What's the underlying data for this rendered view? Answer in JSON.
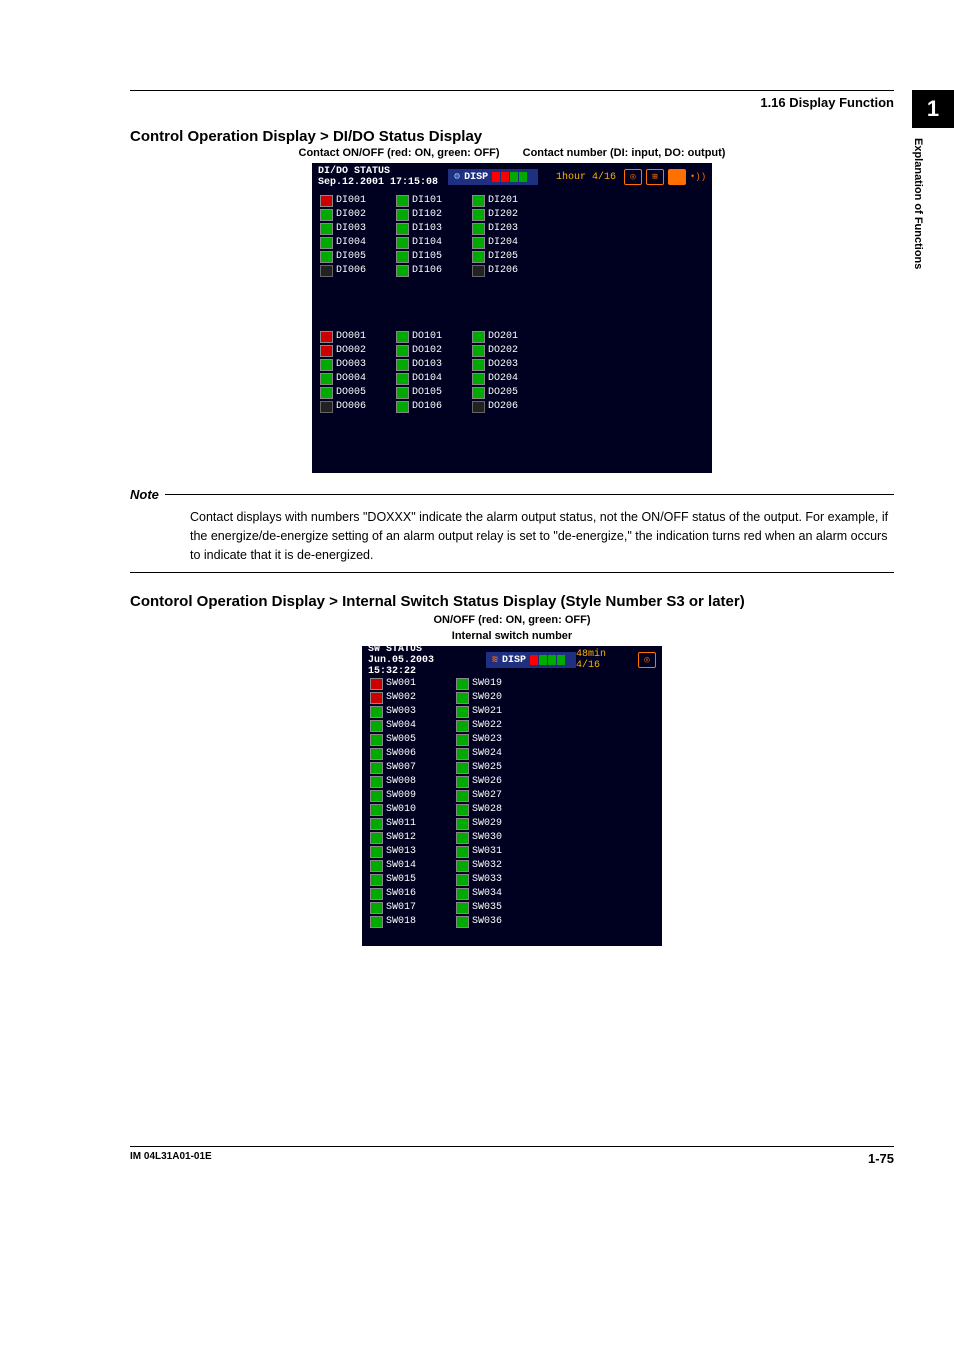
{
  "header": {
    "breadcrumb": "1.16  Display Function"
  },
  "sidetab": {
    "number": "1",
    "text": "Explanation of Functions"
  },
  "section1": {
    "title": "Control Operation Display > DI/DO Status Display",
    "anno_left": "Contact ON/OFF (red: ON, green: OFF)",
    "anno_right": "Contact number (DI: input, DO: output)",
    "screen": {
      "title_line1": "DI/DO STATUS",
      "title_line2": "Sep.12.2001 17:15:08",
      "disp_label": "DISP",
      "time_label": "1hour 4/16",
      "bar_colors": [
        "#ff0000",
        "#ff0000",
        "#00aa00",
        "#00aa00"
      ],
      "di": {
        "col1": [
          "DI001",
          "DI002",
          "DI003",
          "DI004",
          "DI005",
          "DI006"
        ],
        "col2": [
          "DI101",
          "DI102",
          "DI103",
          "DI104",
          "DI105",
          "DI106"
        ],
        "col3": [
          "DI201",
          "DI202",
          "DI203",
          "DI204",
          "DI205",
          "DI206"
        ],
        "red_indices_col1": [
          0
        ],
        "red_indices_col2": [],
        "red_indices_col3": [],
        "gray_indices_col1": [
          5
        ],
        "gray_indices_col3": [
          5
        ]
      },
      "do_": {
        "col1": [
          "DO001",
          "DO002",
          "DO003",
          "DO004",
          "DO005",
          "DO006"
        ],
        "col2": [
          "DO101",
          "DO102",
          "DO103",
          "DO104",
          "DO105",
          "DO106"
        ],
        "col3": [
          "DO201",
          "DO202",
          "DO203",
          "DO204",
          "DO205",
          "DO206"
        ],
        "red_indices_col1": [
          0,
          1
        ],
        "gray_indices_col1": [
          5
        ],
        "gray_indices_col3": [
          5
        ]
      }
    }
  },
  "note": {
    "heading": "Note",
    "body": "Contact displays with numbers \"DOXXX\" indicate the alarm output status, not the ON/OFF status of the output.  For example, if the energize/de-energize setting of an alarm output relay is set to \"de-energize,\" the indication turns red when an alarm occurs to indicate that it is de-energized."
  },
  "section2": {
    "title": "Contorol Operation Display > Internal Switch Status Display (Style Number S3 or later)",
    "anno_top": "ON/OFF (red: ON, green: OFF)",
    "anno_sub": "Internal switch number",
    "screen": {
      "title_line1": "SW STATUS",
      "title_line2": "Jun.05.2003 15:32:22",
      "disp_label": "DISP",
      "time_label": "48min 4/16",
      "bar_colors": [
        "#ff0000",
        "#00aa00",
        "#00aa00",
        "#00aa00"
      ],
      "col1": [
        "SW001",
        "SW002",
        "SW003",
        "SW004",
        "SW005",
        "SW006",
        "SW007",
        "SW008",
        "SW009",
        "SW010",
        "SW011",
        "SW012",
        "SW013",
        "SW014",
        "SW015",
        "SW016",
        "SW017",
        "SW018"
      ],
      "col2": [
        "SW019",
        "SW020",
        "SW021",
        "SW022",
        "SW023",
        "SW024",
        "SW025",
        "SW026",
        "SW027",
        "SW028",
        "SW029",
        "SW030",
        "SW031",
        "SW032",
        "SW033",
        "SW034",
        "SW035",
        "SW036"
      ],
      "red_col1": [
        0,
        1
      ],
      "red_col2": []
    }
  },
  "footer": {
    "doc_id": "IM 04L31A01-01E",
    "page": "1-75"
  },
  "colors": {
    "screen_bg": "#000020",
    "header_blue": "#203080",
    "orange": "#ff7000",
    "amber_text": "#ffb000",
    "green": "#00aa00",
    "red": "#cc0000"
  }
}
